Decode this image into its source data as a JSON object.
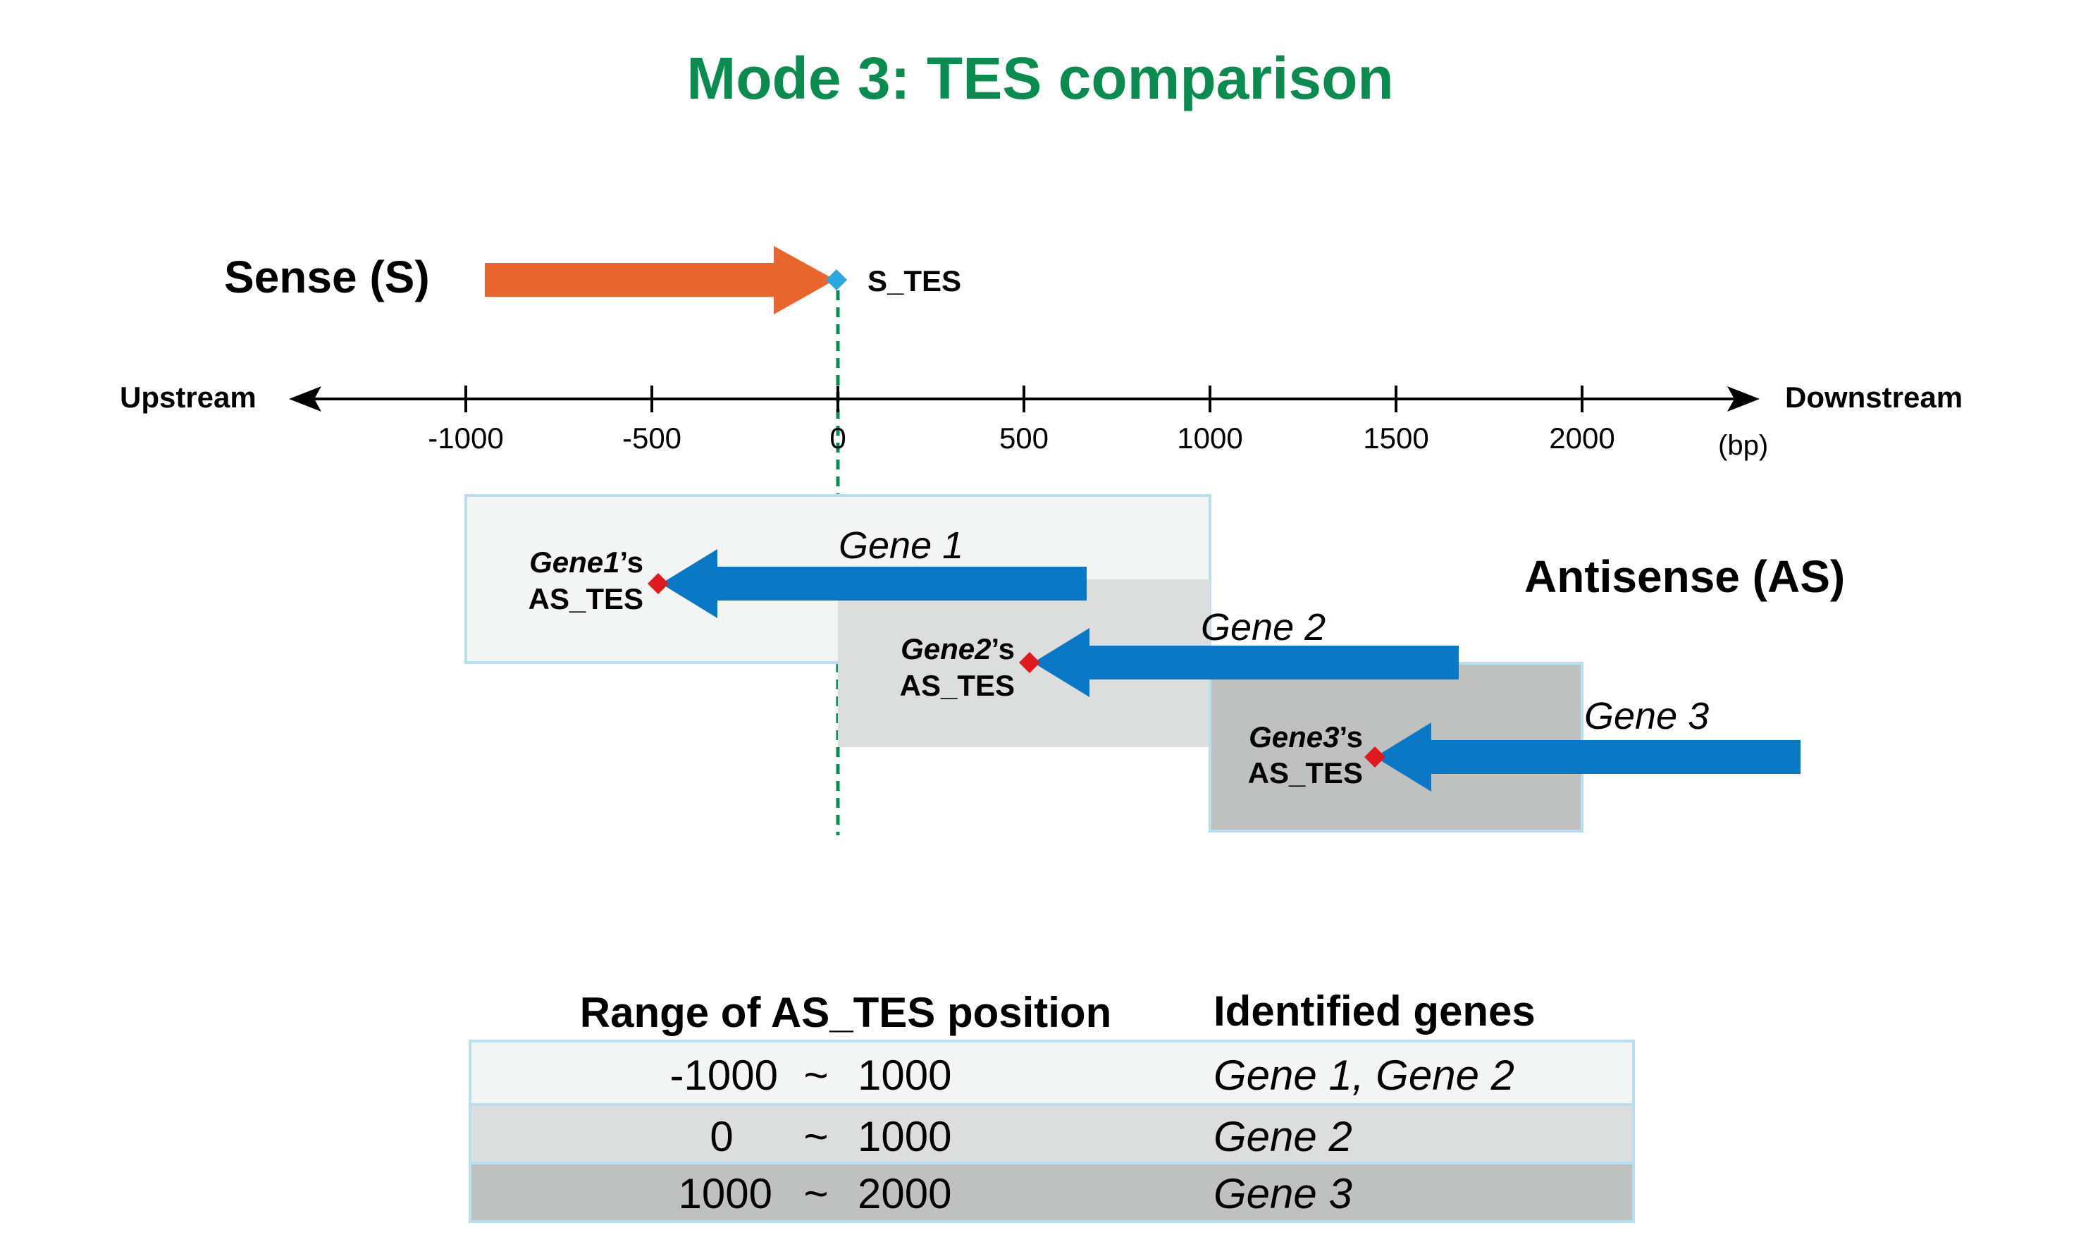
{
  "title": "Mode 3: TES comparison",
  "sense": {
    "label": "Sense (S)",
    "tes_label": "S_TES"
  },
  "axis": {
    "left_label": "Upstream",
    "right_label": "Downstream",
    "unit": "(bp)",
    "ticks": [
      "-1000",
      "-500",
      "0",
      "500",
      "1000",
      "1500",
      "2000"
    ]
  },
  "antisense_label": "Antisense (AS)",
  "genes": [
    {
      "name": "Gene 1",
      "tes_gene": "Gene1",
      "tes_suffix": "’s",
      "tes_line2": "AS_TES"
    },
    {
      "name": "Gene 2",
      "tes_gene": "Gene2",
      "tes_suffix": "’s",
      "tes_line2": "AS_TES"
    },
    {
      "name": "Gene 3",
      "tes_gene": "Gene3",
      "tes_suffix": "’s",
      "tes_line2": "AS_TES"
    }
  ],
  "table": {
    "header_range": "Range of AS_TES position",
    "header_genes": "Identified genes",
    "rows": [
      {
        "from": "-1000",
        "sep": "~",
        "to": "1000",
        "genes": "Gene 1, Gene 2"
      },
      {
        "from": "0",
        "sep": "~",
        "to": "1000",
        "genes": "Gene 2"
      },
      {
        "from": "1000",
        "sep": "~",
        "to": "2000",
        "genes": "Gene 3"
      }
    ]
  },
  "colors": {
    "title": "#0a8c50",
    "sense_arrow": "#e8652e",
    "antisense_arrow": "#0a78c4",
    "s_tes_marker": "#2aa9e0",
    "as_tes_marker": "#e0191f",
    "dashed_line": "#0a8c50",
    "region1": "#f3f5f4",
    "region2": "#dcdedd",
    "region3": "#bfc1c0",
    "region_border": "#b7dff0"
  }
}
